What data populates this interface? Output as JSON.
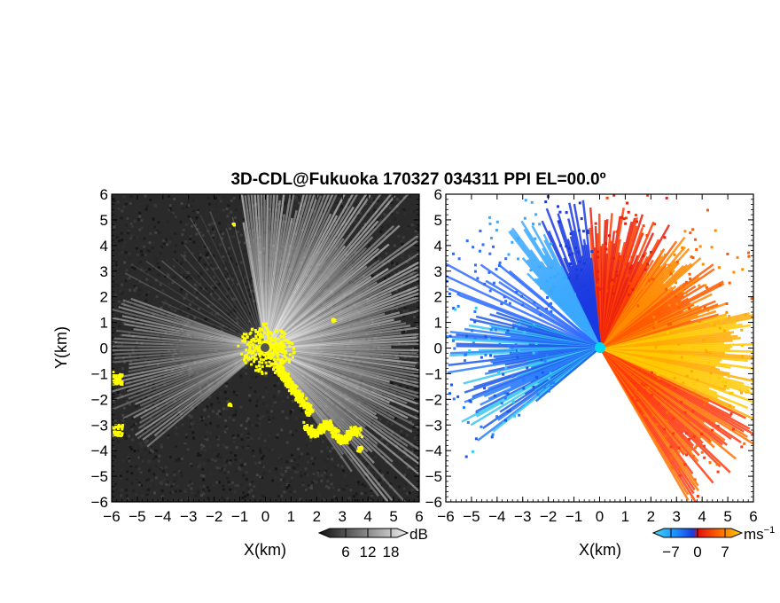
{
  "title": "3D-CDL@Fukuoka 170327 034311 PPI EL=00.0º",
  "chart_data": [
    {
      "type": "heatmap",
      "panel": "left",
      "xlabel": "X(km)",
      "ylabel": "Y(km)",
      "xlim": [
        -6,
        6
      ],
      "ylim": [
        -6,
        6
      ],
      "xticks": [
        -6,
        -5,
        -4,
        -3,
        -2,
        -1,
        0,
        1,
        2,
        3,
        4,
        5,
        6
      ],
      "yticks": [
        -6,
        -5,
        -4,
        -3,
        -2,
        -1,
        0,
        1,
        2,
        3,
        4,
        5,
        6
      ],
      "tick_labels": [
        "−6",
        "−5",
        "−4",
        "−3",
        "−2",
        "−1",
        "0",
        "1",
        "2",
        "3",
        "4",
        "5",
        "6"
      ],
      "colorbar": {
        "unit": "dB",
        "ticks": [
          6,
          12,
          18
        ],
        "tick_labels": [
          "6",
          "12",
          "18"
        ],
        "colormap": "grayscale",
        "overflow_color": "#ffff00"
      },
      "background_color": "#2a2a2a",
      "center_marker": {
        "x": 0,
        "y": 0,
        "color": "#555555"
      }
    },
    {
      "type": "heatmap",
      "panel": "right",
      "xlabel": "X(km)",
      "xlim": [
        -6,
        6
      ],
      "ylim": [
        -6,
        6
      ],
      "xticks": [
        -6,
        -5,
        -4,
        -3,
        -2,
        -1,
        0,
        1,
        2,
        3,
        4,
        5,
        6
      ],
      "yticks": [
        -6,
        -5,
        -4,
        -3,
        -2,
        -1,
        0,
        1,
        2,
        3,
        4,
        5,
        6
      ],
      "tick_labels": [
        "−6",
        "−5",
        "−4",
        "−3",
        "−2",
        "−1",
        "0",
        "1",
        "2",
        "3",
        "4",
        "5",
        "6"
      ],
      "colorbar": {
        "unit": "ms",
        "unit_exp": "−1",
        "ticks": [
          -7,
          0,
          7
        ],
        "tick_labels": [
          "−7",
          "0",
          "7"
        ],
        "colormap": "cyan-blue-red-orange-yellow"
      },
      "background_color": "#ffffff",
      "center_marker": {
        "x": 0,
        "y": 0,
        "color": "#00d8f0"
      }
    }
  ]
}
